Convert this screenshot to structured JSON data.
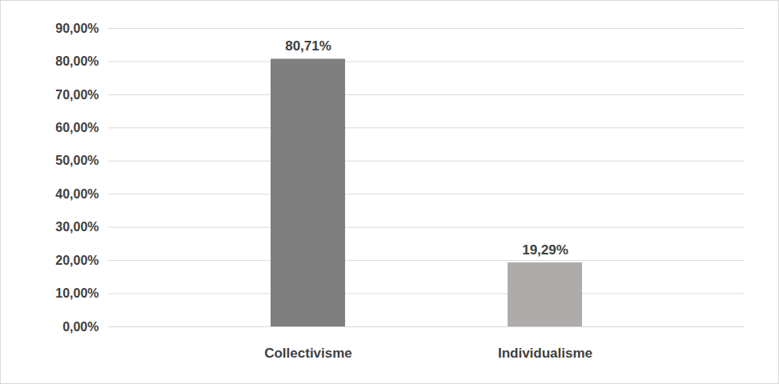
{
  "chart_data": {
    "type": "bar",
    "categories": [
      "Collectivisme",
      "Individualisme"
    ],
    "values": [
      80.71,
      19.29
    ],
    "value_labels": [
      "80,71%",
      "19,29%"
    ],
    "data_labels": true,
    "colors": [
      "#7f7f7f",
      "#afabab"
    ],
    "ylim": [
      0,
      90
    ],
    "yticks": [
      {
        "value": 0,
        "label": "0,00%"
      },
      {
        "value": 10,
        "label": "10,00%"
      },
      {
        "value": 20,
        "label": "20,00%"
      },
      {
        "value": 30,
        "label": "30,00%"
      },
      {
        "value": 40,
        "label": "40,00%"
      },
      {
        "value": 50,
        "label": "50,00%"
      },
      {
        "value": 60,
        "label": "60,00%"
      },
      {
        "value": 70,
        "label": "70,00%"
      },
      {
        "value": 80,
        "label": "80,00%"
      },
      {
        "value": 90,
        "label": "90,00%"
      }
    ],
    "grid": true
  }
}
